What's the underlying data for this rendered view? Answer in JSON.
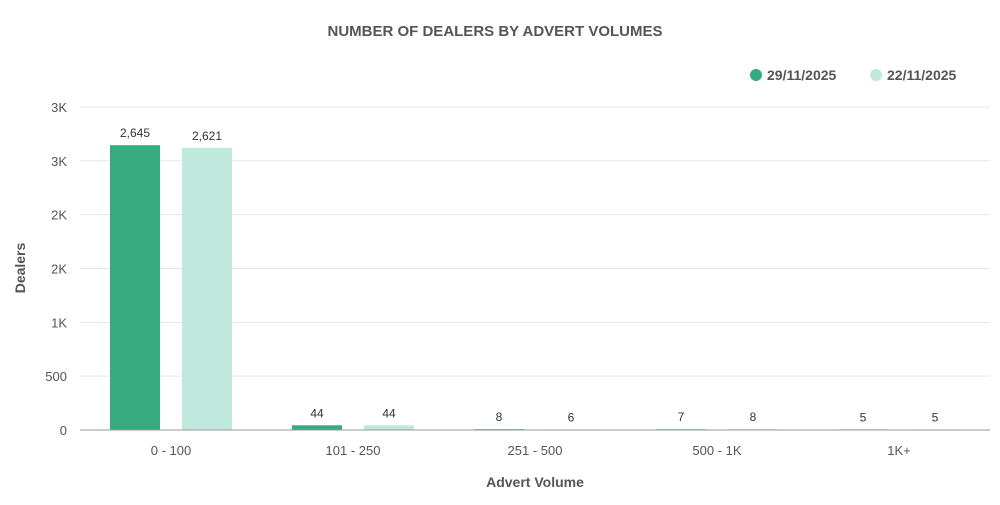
{
  "chart_data": {
    "type": "bar",
    "title": "NUMBER OF DEALERS BY ADVERT VOLUMES",
    "xlabel": "Advert Volume",
    "ylabel": "Dealers",
    "categories": [
      "0 - 100",
      "101 - 250",
      "251 - 500",
      "500 - 1K",
      "1K+"
    ],
    "series": [
      {
        "name": "29/11/2025",
        "color": "#36ab81",
        "values": [
          2645,
          44,
          8,
          7,
          5
        ],
        "labels": [
          "2,645",
          "44",
          "8",
          "7",
          "5"
        ]
      },
      {
        "name": "22/11/2025",
        "color": "#c1e8dc",
        "values": [
          2621,
          44,
          6,
          8,
          5
        ],
        "labels": [
          "2,621",
          "44",
          "6",
          "8",
          "5"
        ]
      }
    ],
    "yticks": [
      0,
      500,
      1000,
      1500,
      2000,
      2500,
      3000
    ],
    "ytick_labels": [
      "0",
      "500",
      "1K",
      "2K",
      "2K",
      "3K",
      "3K"
    ],
    "ylim": [
      0,
      3000
    ],
    "grid": true,
    "legend_position": "top-right"
  }
}
